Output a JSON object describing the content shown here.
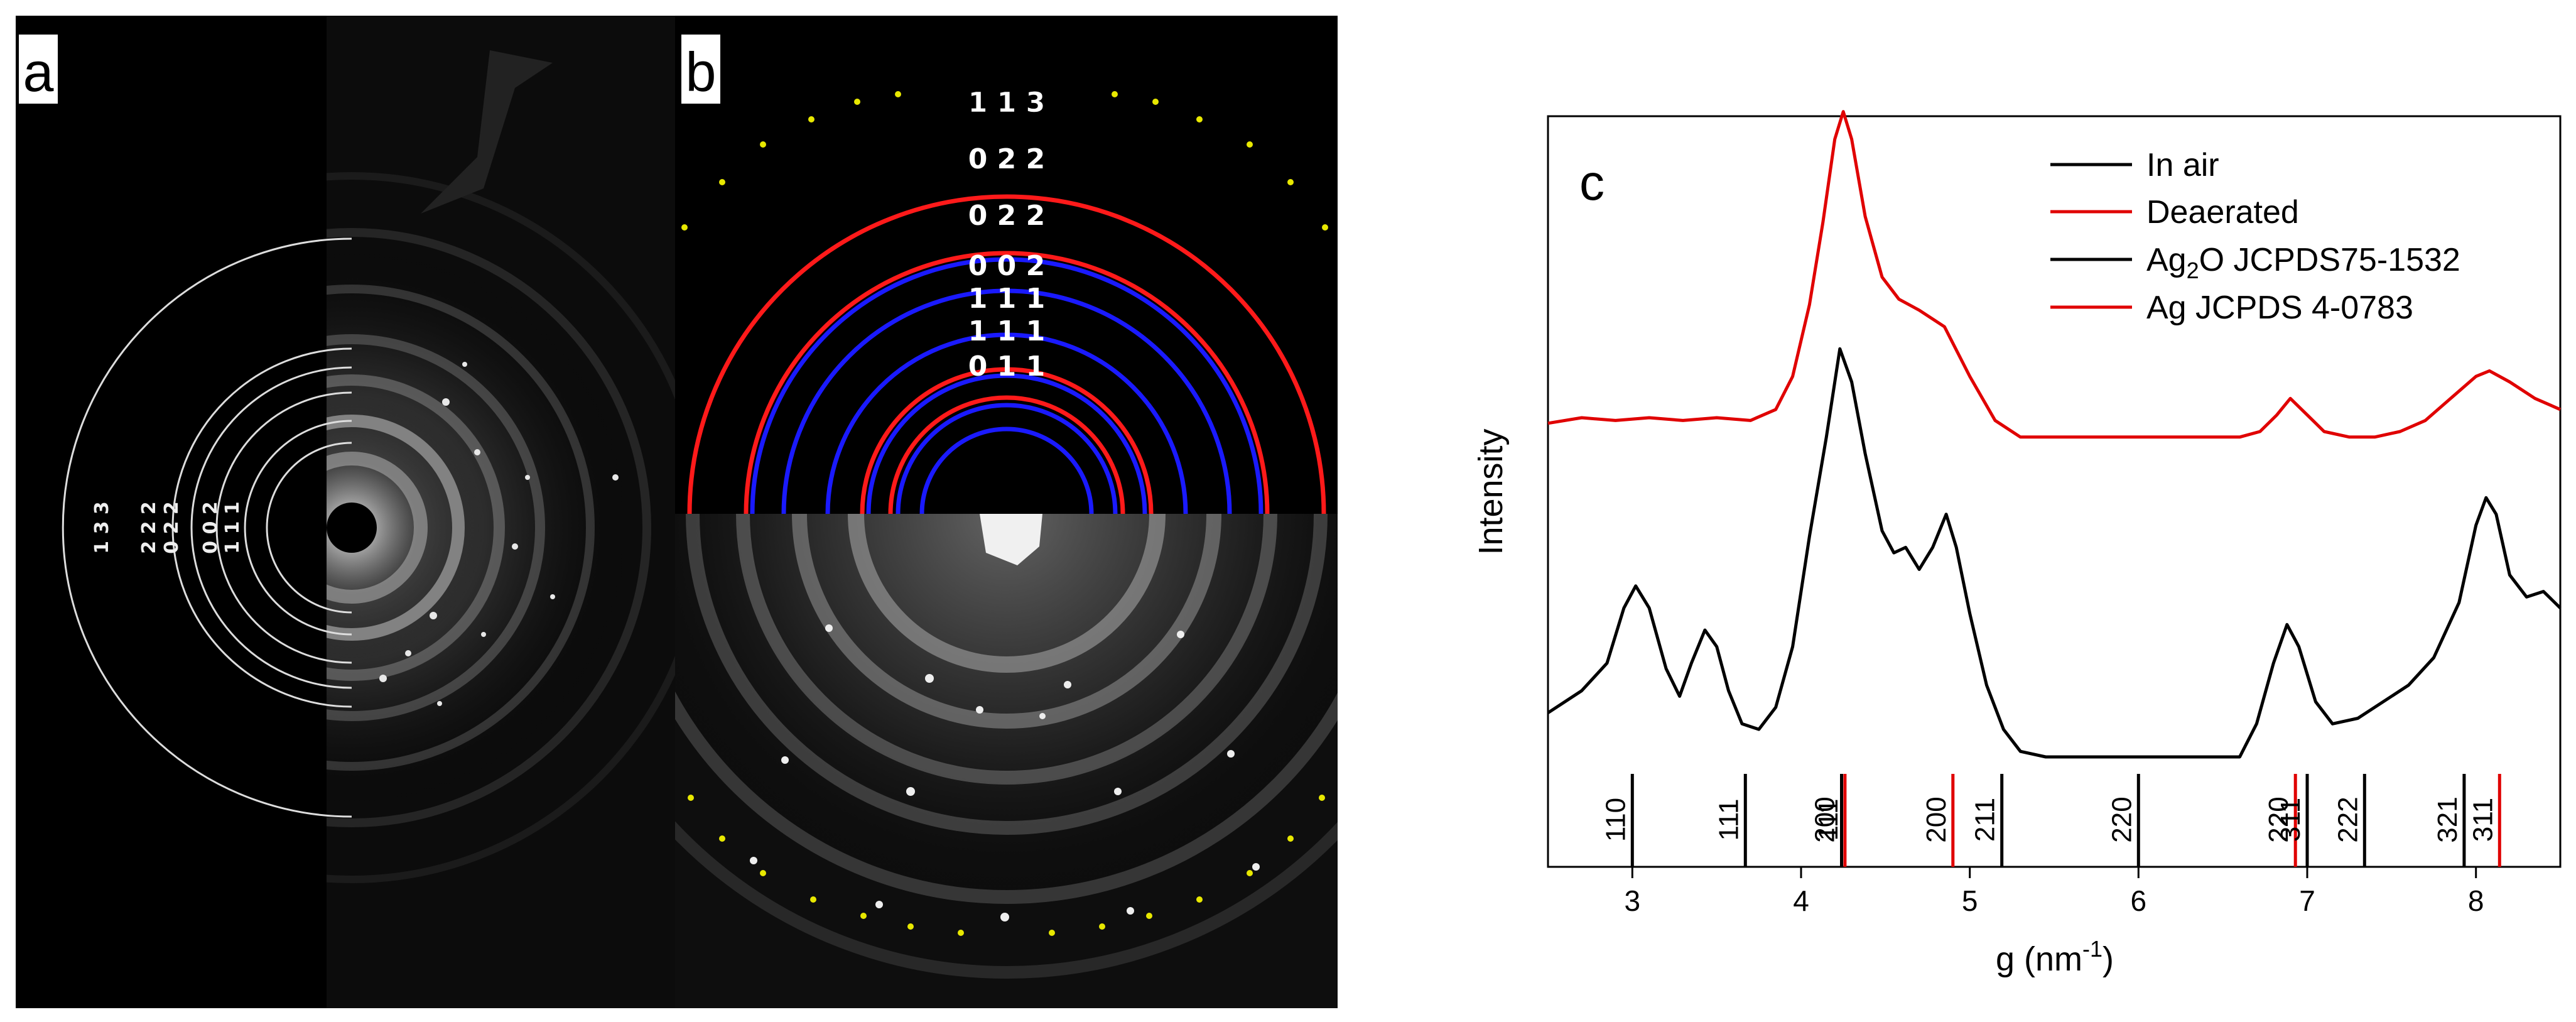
{
  "panels": {
    "a": {
      "letter": "a",
      "ring_labels": [
        "1 3 3",
        "2 2 2",
        "0 2 2",
        "0 0 2",
        "1 1 1"
      ]
    },
    "b": {
      "letter": "b",
      "ring_labels": [
        "1 1 3",
        "0 2 2",
        "0 2 2",
        "0 0 2",
        "1 1 1",
        "1 1 1",
        "0 1 1"
      ]
    }
  },
  "chart_data": {
    "type": "line",
    "panel_letter": "c",
    "xlabel": "g (nm",
    "xlabel_sup": "-1",
    "xlabel_end": ")",
    "ylabel": "Intensity",
    "xlim": [
      2.5,
      8.5
    ],
    "x_ticks": [
      3,
      4,
      5,
      6,
      7,
      8
    ],
    "tick_labels": [
      "3",
      "4",
      "5",
      "6",
      "7",
      "8"
    ],
    "grid": false,
    "legend_position": "top-right",
    "legend": [
      {
        "label": "In air",
        "color": "#000000"
      },
      {
        "label": "Deaerated",
        "color": "#e00000"
      },
      {
        "label_main": "Ag",
        "label_sub": "2",
        "label_rest": "O JCPDS75-1532",
        "color": "#000000"
      },
      {
        "label": "Ag JCPDS 4-0783",
        "color": "#e00000"
      }
    ],
    "series": [
      {
        "name": "In air",
        "color": "#000000",
        "points": [
          [
            2.5,
            0.08
          ],
          [
            2.7,
            0.12
          ],
          [
            2.85,
            0.17
          ],
          [
            2.95,
            0.27
          ],
          [
            3.02,
            0.31
          ],
          [
            3.1,
            0.27
          ],
          [
            3.2,
            0.16
          ],
          [
            3.28,
            0.11
          ],
          [
            3.35,
            0.17
          ],
          [
            3.43,
            0.23
          ],
          [
            3.5,
            0.2
          ],
          [
            3.57,
            0.12
          ],
          [
            3.65,
            0.06
          ],
          [
            3.75,
            0.05
          ],
          [
            3.85,
            0.09
          ],
          [
            3.95,
            0.2
          ],
          [
            4.05,
            0.4
          ],
          [
            4.15,
            0.58
          ],
          [
            4.23,
            0.74
          ],
          [
            4.3,
            0.68
          ],
          [
            4.38,
            0.55
          ],
          [
            4.48,
            0.41
          ],
          [
            4.55,
            0.37
          ],
          [
            4.62,
            0.38
          ],
          [
            4.7,
            0.34
          ],
          [
            4.78,
            0.38
          ],
          [
            4.86,
            0.44
          ],
          [
            4.92,
            0.38
          ],
          [
            5.0,
            0.26
          ],
          [
            5.1,
            0.13
          ],
          [
            5.2,
            0.05
          ],
          [
            5.3,
            0.01
          ],
          [
            5.45,
            0.0
          ],
          [
            6.0,
            0.0
          ],
          [
            6.6,
            0.0
          ],
          [
            6.7,
            0.06
          ],
          [
            6.8,
            0.17
          ],
          [
            6.88,
            0.24
          ],
          [
            6.95,
            0.2
          ],
          [
            7.05,
            0.1
          ],
          [
            7.15,
            0.06
          ],
          [
            7.3,
            0.07
          ],
          [
            7.45,
            0.1
          ],
          [
            7.6,
            0.13
          ],
          [
            7.75,
            0.18
          ],
          [
            7.9,
            0.28
          ],
          [
            8.0,
            0.42
          ],
          [
            8.06,
            0.47
          ],
          [
            8.12,
            0.44
          ],
          [
            8.2,
            0.33
          ],
          [
            8.3,
            0.29
          ],
          [
            8.4,
            0.3
          ],
          [
            8.5,
            0.27
          ]
        ]
      },
      {
        "name": "Deaerated",
        "color": "#e00000",
        "points": [
          [
            2.5,
            0.605
          ],
          [
            2.7,
            0.615
          ],
          [
            2.9,
            0.61
          ],
          [
            3.1,
            0.615
          ],
          [
            3.3,
            0.61
          ],
          [
            3.5,
            0.615
          ],
          [
            3.7,
            0.61
          ],
          [
            3.85,
            0.63
          ],
          [
            3.95,
            0.69
          ],
          [
            4.05,
            0.82
          ],
          [
            4.13,
            0.97
          ],
          [
            4.2,
            1.12
          ],
          [
            4.25,
            1.17
          ],
          [
            4.3,
            1.12
          ],
          [
            4.38,
            0.98
          ],
          [
            4.48,
            0.87
          ],
          [
            4.58,
            0.83
          ],
          [
            4.7,
            0.81
          ],
          [
            4.85,
            0.78
          ],
          [
            5.0,
            0.69
          ],
          [
            5.15,
            0.61
          ],
          [
            5.3,
            0.58
          ],
          [
            5.5,
            0.58
          ],
          [
            6.0,
            0.58
          ],
          [
            6.6,
            0.58
          ],
          [
            6.72,
            0.59
          ],
          [
            6.82,
            0.62
          ],
          [
            6.9,
            0.65
          ],
          [
            7.0,
            0.62
          ],
          [
            7.1,
            0.59
          ],
          [
            7.25,
            0.58
          ],
          [
            7.4,
            0.58
          ],
          [
            7.55,
            0.59
          ],
          [
            7.7,
            0.61
          ],
          [
            7.85,
            0.65
          ],
          [
            8.0,
            0.69
          ],
          [
            8.08,
            0.7
          ],
          [
            8.2,
            0.68
          ],
          [
            8.35,
            0.65
          ],
          [
            8.5,
            0.63
          ]
        ]
      }
    ],
    "reference_lines": [
      {
        "series": "Ag2O JCPDS75-1532",
        "color": "#000000",
        "x": 3.0,
        "label": "110"
      },
      {
        "series": "Ag2O JCPDS75-1532",
        "color": "#000000",
        "x": 3.67,
        "label": "111"
      },
      {
        "series": "Ag2O JCPDS75-1532",
        "color": "#000000",
        "x": 4.24,
        "label": "200"
      },
      {
        "series": "Ag JCPDS 4-0783",
        "color": "#e00000",
        "x": 4.26,
        "label": "111"
      },
      {
        "series": "Ag JCPDS 4-0783",
        "color": "#e00000",
        "x": 4.9,
        "label": "200"
      },
      {
        "series": "Ag2O JCPDS75-1532",
        "color": "#000000",
        "x": 5.19,
        "label": "211"
      },
      {
        "series": "Ag2O JCPDS75-1532",
        "color": "#000000",
        "x": 6.0,
        "label": "220"
      },
      {
        "series": "Ag JCPDS 4-0783",
        "color": "#e00000",
        "x": 6.93,
        "label": "220"
      },
      {
        "series": "Ag2O JCPDS75-1532",
        "color": "#000000",
        "x": 7.0,
        "label": "311"
      },
      {
        "series": "Ag2O JCPDS75-1532",
        "color": "#000000",
        "x": 7.34,
        "label": "222"
      },
      {
        "series": "Ag2O JCPDS75-1532",
        "color": "#000000",
        "x": 7.93,
        "label": "321"
      },
      {
        "series": "Ag JCPDS 4-0783",
        "color": "#e00000",
        "x": 8.14,
        "label": "311"
      }
    ]
  },
  "colors": {
    "red_ring": "#ff1a1a",
    "blue_ring": "#1a1aff",
    "marker_dot": "#e8e800"
  }
}
